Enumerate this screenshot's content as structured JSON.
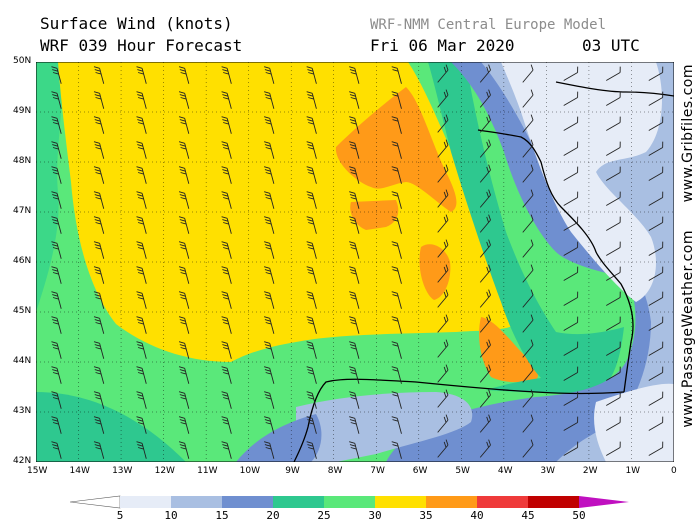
{
  "header": {
    "title_line1": "Surface Wind (knots)",
    "title_line2": "WRF 039 Hour Forecast",
    "model_name": "WRF-NMM Central Europe Model",
    "date": "Fri 06 Mar 2020",
    "time": "03 UTC"
  },
  "map": {
    "lat_labels": [
      "50N",
      "49N",
      "48N",
      "47N",
      "46N",
      "45N",
      "44N",
      "43N",
      "42N"
    ],
    "lon_labels": [
      "15W",
      "14W",
      "13W",
      "12W",
      "11W",
      "10W",
      "9W",
      "8W",
      "7W",
      "6W",
      "5W",
      "4W",
      "3W",
      "2W",
      "1W",
      "0"
    ]
  },
  "side_text": {
    "right_top": "www.Gribfiles.com",
    "right_bottom": "www.PassageWeather.com"
  },
  "legend": {
    "labels": [
      "5",
      "10",
      "15",
      "20",
      "25",
      "30",
      "35",
      "40",
      "45",
      "50"
    ],
    "colors": [
      "#e6ecf7",
      "#a9bfe2",
      "#6f8fd0",
      "#2ec88f",
      "#5ae87a",
      "#ffe000",
      "#ff9a18",
      "#ef3a3a",
      "#c00000",
      "#c010c0"
    ],
    "left_arrow_color": "#ffffff",
    "right_arrow_color": "#c010c0"
  }
}
